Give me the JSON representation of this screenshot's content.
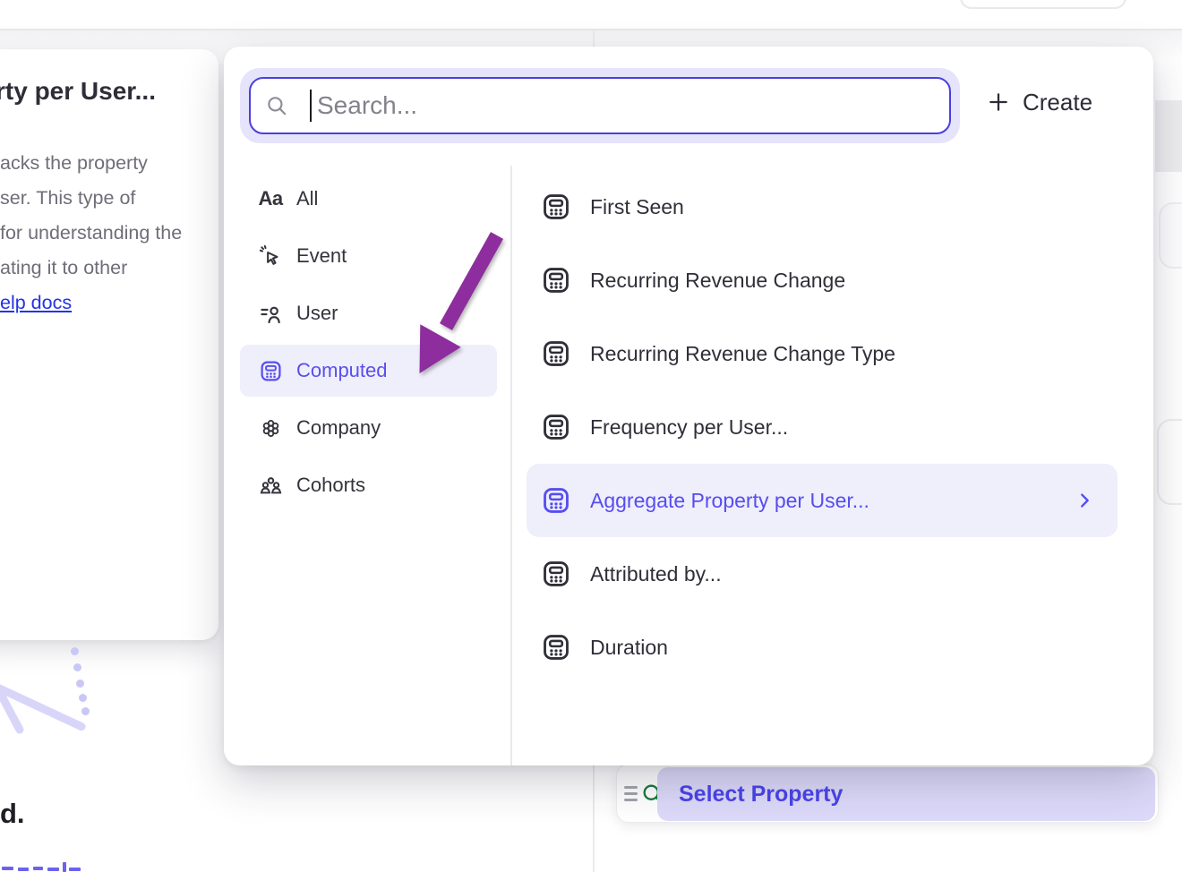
{
  "popover": {
    "search_placeholder": "Search...",
    "create_label": "Create",
    "aa_glyph": "Aa",
    "categories": [
      {
        "label": "All",
        "icon": "aa",
        "selected": false
      },
      {
        "label": "Event",
        "icon": "event",
        "selected": false
      },
      {
        "label": "User",
        "icon": "user",
        "selected": false
      },
      {
        "label": "Computed",
        "icon": "computed",
        "selected": true
      },
      {
        "label": "Company",
        "icon": "company",
        "selected": false
      },
      {
        "label": "Cohorts",
        "icon": "cohorts",
        "selected": false
      }
    ],
    "items": [
      {
        "label": "First Seen",
        "selected": false,
        "has_submenu": false
      },
      {
        "label": "Recurring Revenue Change",
        "selected": false,
        "has_submenu": false
      },
      {
        "label": "Recurring Revenue Change Type",
        "selected": false,
        "has_submenu": false
      },
      {
        "label": "Frequency per User...",
        "selected": false,
        "has_submenu": false
      },
      {
        "label": "Aggregate Property per User...",
        "selected": true,
        "has_submenu": true
      },
      {
        "label": "Attributed by...",
        "selected": false,
        "has_submenu": false
      },
      {
        "label": "Duration",
        "selected": false,
        "has_submenu": false
      }
    ]
  },
  "tooltip": {
    "title_fragment": "rty per User...",
    "body_lines": [
      "acks the property",
      "ser. This type of",
      "for understanding the",
      "ating it to other"
    ],
    "link_label": "elp docs"
  },
  "canvas_bottom": {
    "text_fragment": "d.",
    "select_property_label": "Select Property"
  },
  "colors": {
    "accent_purple": "#584FEF",
    "highlight_bg": "#EFEEFB",
    "search_border": "#4A3FE0",
    "arrow_purple": "#8E2D9E",
    "link_blue": "#2433E4",
    "green_search_icon": "#15793C",
    "pill_bg": "#DCD9F9"
  }
}
